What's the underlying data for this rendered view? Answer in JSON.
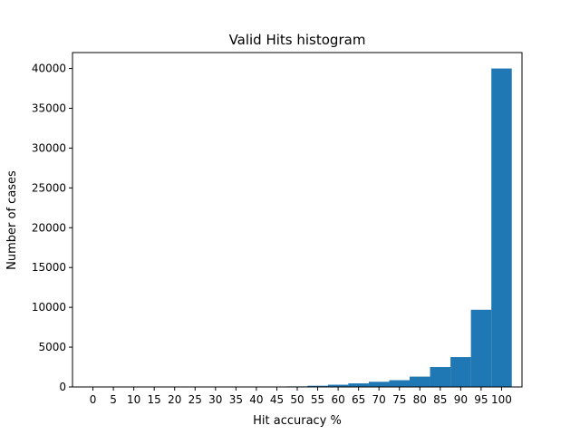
{
  "chart_data": {
    "type": "bar",
    "title": "Valid Hits histogram",
    "xlabel": "Hit accuracy %",
    "ylabel": "Number of cases",
    "bin_edges": [
      0,
      5,
      10,
      15,
      20,
      25,
      30,
      35,
      40,
      45,
      50,
      55,
      60,
      65,
      70,
      75,
      80,
      85,
      90,
      95,
      100
    ],
    "values": [
      0,
      0,
      0,
      0,
      0,
      0,
      0,
      0,
      0,
      10,
      70,
      150,
      280,
      450,
      650,
      850,
      1300,
      2500,
      3750,
      9700,
      40000
    ],
    "bin_width": 5,
    "xticks": [
      "0",
      "5",
      "10",
      "15",
      "20",
      "25",
      "30",
      "35",
      "40",
      "45",
      "50",
      "55",
      "60",
      "65",
      "70",
      "75",
      "80",
      "85",
      "90",
      "95",
      "100"
    ],
    "yticks": [
      "0",
      "5000",
      "10000",
      "15000",
      "20000",
      "25000",
      "30000",
      "35000",
      "40000"
    ],
    "ylim": [
      0,
      42000
    ],
    "xlim": [
      -5,
      105
    ],
    "bar_color": "#1f77b4",
    "grid": false,
    "legend": "none"
  }
}
